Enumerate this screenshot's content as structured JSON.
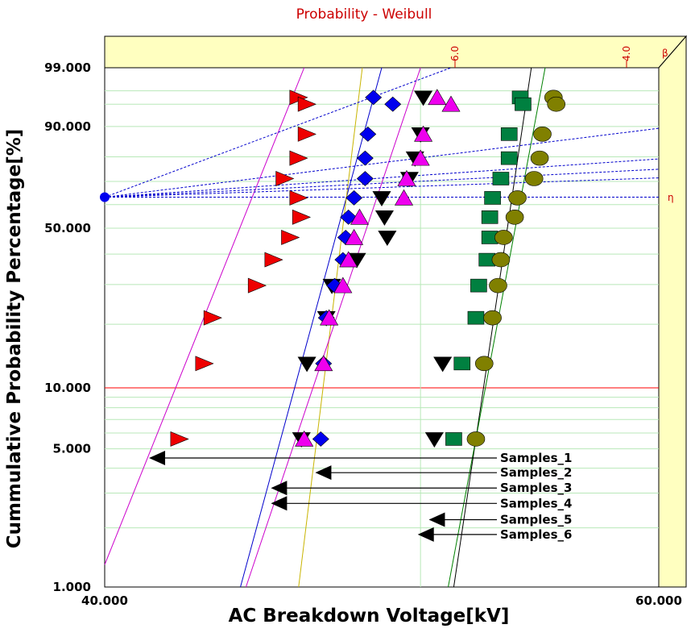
{
  "chart_data": {
    "type": "scatter",
    "title": "Probability - Weibull",
    "xlabel": "AC Breakdown Voltage[kV]",
    "ylabel": "Cummulative Probability Percentage[%]",
    "xlim": [
      40,
      60
    ],
    "ylim": [
      1,
      99
    ],
    "x_tick_labels": [
      "40.000",
      "60.000"
    ],
    "y_ticks": [
      99,
      90,
      50,
      10,
      5,
      1
    ],
    "y_tick_labels": [
      "99.000",
      "90.000",
      "50.000",
      "10.000",
      "5.000",
      "1.000"
    ],
    "beta_ticks": [
      {
        "label": "6.0",
        "value": 6
      },
      {
        "label": "4.0",
        "value": 4
      }
    ],
    "beta_label": "β",
    "eta_label": "η",
    "colors": {
      "title": "#cc0000",
      "frame_fill": "#ffffc0",
      "grid": "#b8e8b8",
      "ten_pct_line": "#ff0000",
      "guide": "#0000cc",
      "side_text": "#cc0000"
    },
    "series": [
      {
        "name": "Samples_1",
        "marker": "triangle-right",
        "color": "#ee0000",
        "line_color": "#cc00cc",
        "x": [
          42.7,
          43.6,
          43.9,
          45.5,
          46.1,
          46.7,
          47.1,
          47.0,
          46.5,
          47.0,
          47.3,
          47.0,
          47.3
        ],
        "y": [
          5.6,
          13.1,
          21.4,
          29.7,
          38.0,
          46.3,
          54.6,
          62.9,
          71.2,
          79.5,
          87.8,
          96.1,
          95.0
        ],
        "line_x": [
          40.0,
          47.2
        ],
        "line_y": [
          1.3,
          99
        ]
      },
      {
        "name": "Samples_2",
        "marker": "triangle-down",
        "color": "#000000",
        "line_color": "#0000cc",
        "x": [
          47.1,
          47.3,
          48.0,
          48.2,
          49.1,
          50.2,
          50.1,
          50.0,
          51.0,
          51.2,
          51.4,
          51.5,
          51.9,
          52.2
        ],
        "y": [
          5.6,
          13.1,
          21.4,
          29.7,
          38.0,
          46.3,
          54.6,
          62.9,
          71.2,
          79.5,
          87.8,
          96.1,
          5.6,
          13.1
        ],
        "line_x": [
          44.9,
          50.0
        ],
        "line_y": [
          1.0,
          99
        ]
      },
      {
        "name": "Samples_3",
        "marker": "diamond",
        "color": "#0000ee",
        "line_color": "#c8b400",
        "x": [
          47.8,
          47.9,
          48.0,
          48.3,
          48.6,
          48.7,
          48.8,
          49.0,
          49.4,
          49.4,
          49.5,
          49.7,
          50.4
        ],
        "y": [
          5.6,
          13.1,
          21.4,
          29.7,
          38.0,
          46.3,
          54.6,
          62.9,
          71.2,
          79.5,
          87.8,
          96.1,
          95.0
        ],
        "line_x": [
          47.0,
          49.3
        ],
        "line_y": [
          1.0,
          99
        ]
      },
      {
        "name": "Samples_4",
        "marker": "triangle-up",
        "color": "#ee00ee",
        "line_color": "#cc00cc",
        "x": [
          47.2,
          47.9,
          48.1,
          48.6,
          48.8,
          49.0,
          49.2,
          50.8,
          50.9,
          51.4,
          51.5,
          52.0,
          52.5
        ],
        "y": [
          5.6,
          13.1,
          21.4,
          29.7,
          38.0,
          46.3,
          54.6,
          62.9,
          71.2,
          79.5,
          87.8,
          96.1,
          95.0
        ],
        "line_x": [
          45.1,
          51.4
        ],
        "line_y": [
          1.0,
          99
        ]
      },
      {
        "name": "Samples_5",
        "marker": "square",
        "color": "#008040",
        "line_color": "#000000",
        "x": [
          52.6,
          52.9,
          53.4,
          53.5,
          53.8,
          53.9,
          53.9,
          54.0,
          54.3,
          54.6,
          54.6,
          55.0,
          55.1
        ],
        "y": [
          5.6,
          13.1,
          21.4,
          29.7,
          38.0,
          46.3,
          54.6,
          62.9,
          71.2,
          79.5,
          87.8,
          96.1,
          95.0
        ],
        "line_x": [
          52.6,
          55.4
        ],
        "line_y": [
          1.0,
          99
        ]
      },
      {
        "name": "Samples_6",
        "marker": "circle",
        "color": "#808000",
        "line_color": "#008000",
        "x": [
          53.4,
          53.7,
          54.0,
          54.2,
          54.3,
          54.4,
          54.8,
          54.9,
          55.5,
          55.7,
          55.8,
          56.2,
          56.3
        ],
        "y": [
          5.6,
          13.1,
          21.4,
          29.7,
          38.0,
          46.3,
          54.6,
          62.9,
          71.2,
          79.5,
          87.8,
          96.1,
          95.0
        ],
        "line_x": [
          52.4,
          55.9
        ],
        "line_y": [
          1.0,
          99
        ]
      }
    ],
    "guide_lines": {
      "origin_x": 40.0,
      "eta_y": 63.2,
      "targets": [
        {
          "x": 52.5,
          "y": 99
        },
        {
          "x": 60,
          "y": 89.5
        },
        {
          "x": 60,
          "y": 79.2
        },
        {
          "x": 60,
          "y": 75.1
        },
        {
          "x": 60,
          "y": 71.5
        },
        {
          "x": 60,
          "y": 63.2
        }
      ]
    },
    "annotations": [
      {
        "label": "Samples_1",
        "tip_x": 41.6,
        "y": 4.5
      },
      {
        "label": "Samples_2",
        "tip_x": 47.6,
        "y": 3.8
      },
      {
        "label": "Samples_3",
        "tip_x": 46.0,
        "y": 3.18
      },
      {
        "label": "Samples_4",
        "tip_x": 46.0,
        "y": 2.66
      },
      {
        "label": "Samples_5",
        "tip_x": 51.7,
        "y": 2.2
      },
      {
        "label": "Samples_6",
        "tip_x": 51.3,
        "y": 1.85
      }
    ]
  }
}
